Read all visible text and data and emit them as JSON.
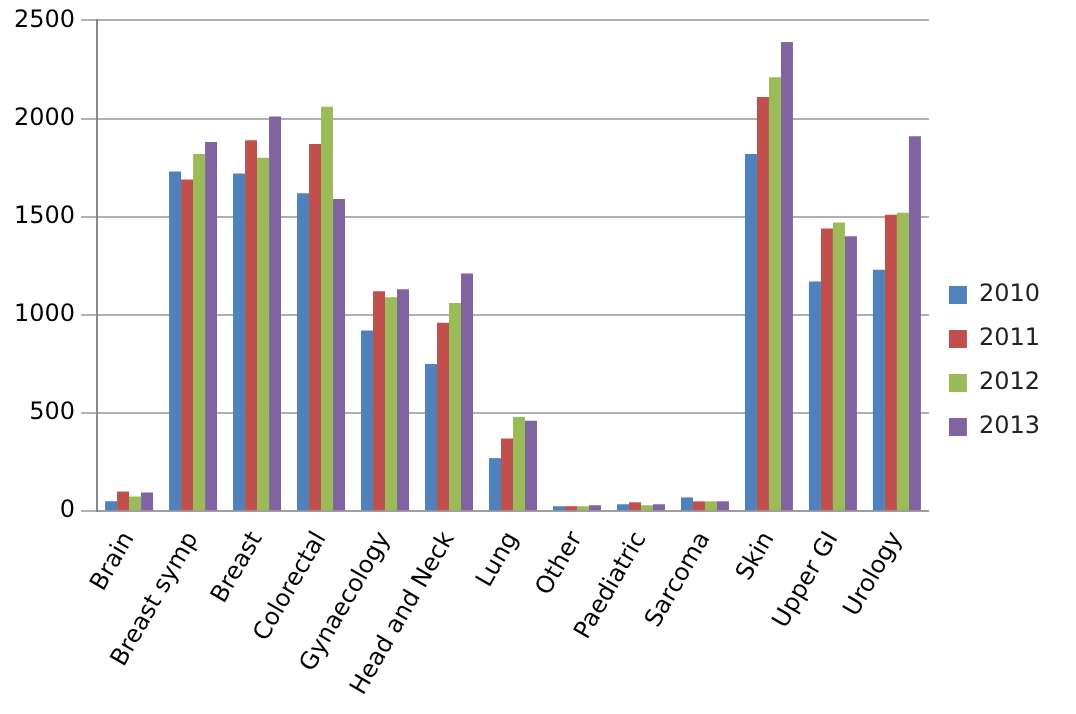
{
  "chart_data": {
    "type": "bar",
    "categories": [
      "Brain",
      "Breast symp",
      "Breast",
      "Colorectal",
      "Gynaecology",
      "Head and Neck",
      "Lung",
      "Other",
      "Paediatric",
      "Sarcoma",
      "Skin",
      "Upper GI",
      "Urology"
    ],
    "series": [
      {
        "name": "2010",
        "color": "#4f81bd",
        "values": [
          50,
          1730,
          1720,
          1620,
          920,
          750,
          270,
          25,
          35,
          70,
          1820,
          1170,
          1230
        ]
      },
      {
        "name": "2011",
        "color": "#c0504d",
        "values": [
          100,
          1690,
          1890,
          1870,
          1120,
          960,
          370,
          25,
          45,
          50,
          2110,
          1440,
          1510
        ]
      },
      {
        "name": "2012",
        "color": "#9bbb59",
        "values": [
          75,
          1820,
          1800,
          2060,
          1090,
          1060,
          480,
          25,
          30,
          50,
          2210,
          1470,
          1520
        ]
      },
      {
        "name": "2013",
        "color": "#8064a2",
        "values": [
          95,
          1880,
          2010,
          1590,
          1130,
          1210,
          460,
          30,
          35,
          50,
          2390,
          1400,
          1910
        ]
      }
    ],
    "ylim": [
      0,
      2500
    ],
    "yticks": [
      0,
      500,
      1000,
      1500,
      2000,
      2500
    ],
    "grid": "y",
    "legend": "right"
  }
}
